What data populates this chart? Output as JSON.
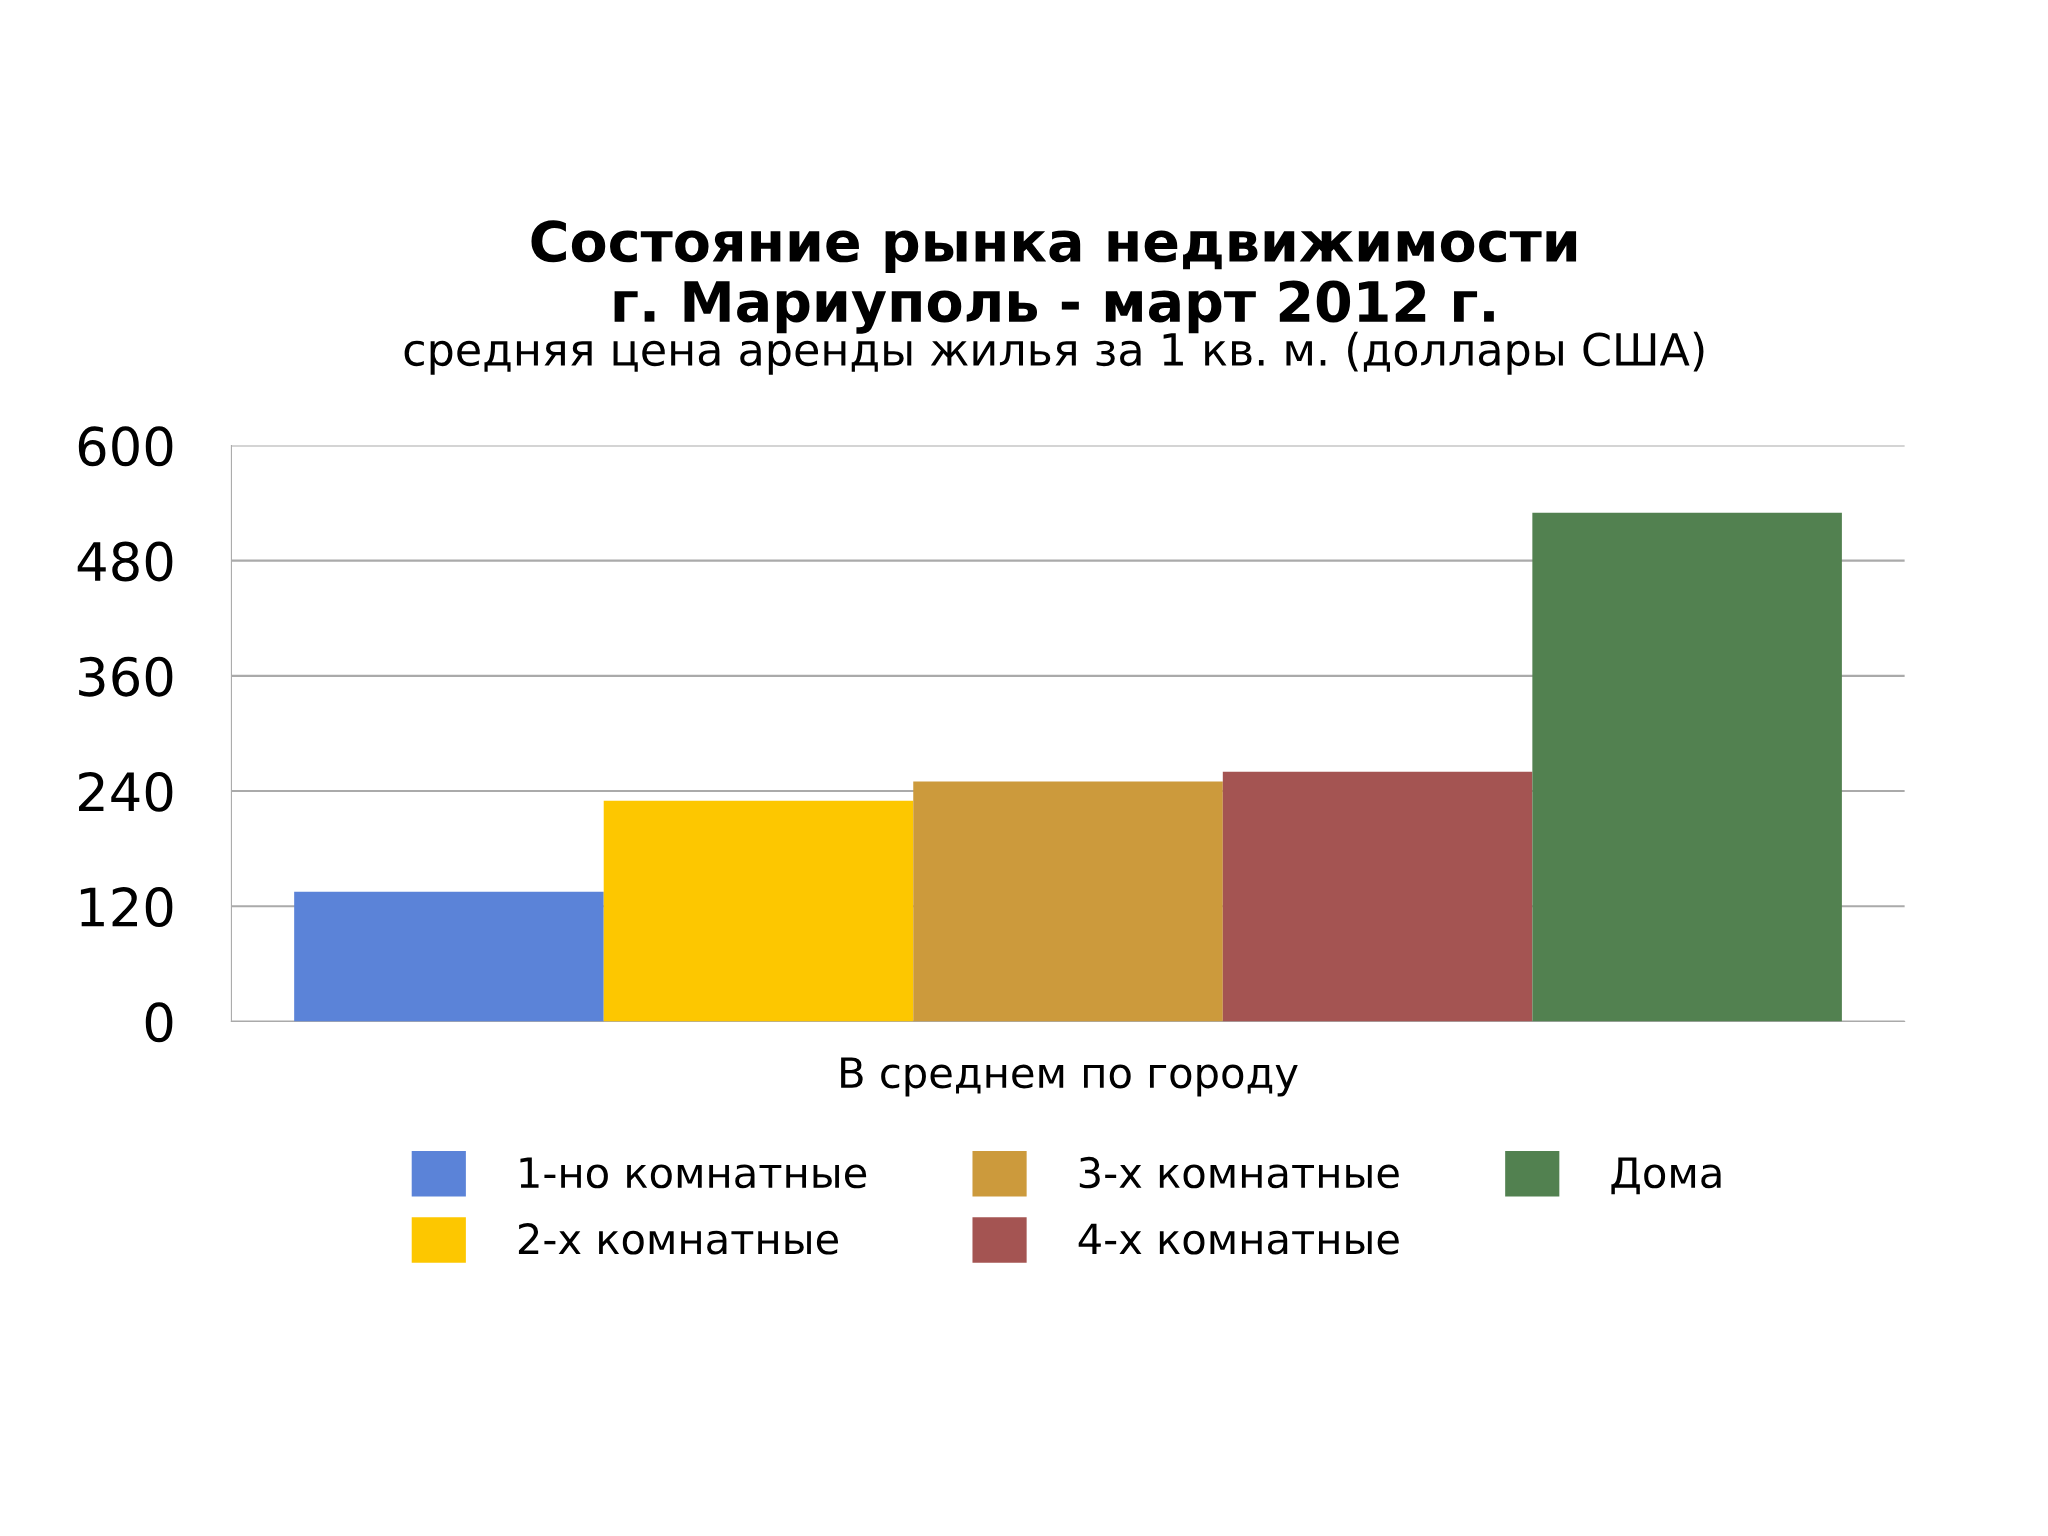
{
  "chart_data": {
    "type": "bar",
    "title": "Состояние рынка недвижимости\nг. Мариуполь - март 2012 г.",
    "subtitle": "средняя цена аренды жилья за 1 кв. м. (доллары США)",
    "categories": [
      "В среднем по городу"
    ],
    "series": [
      {
        "name": "1-но комнатные",
        "color": "#5b83d8",
        "values": [
          135
        ]
      },
      {
        "name": "2-х комнатные",
        "color": "#fdc700",
        "values": [
          230
        ]
      },
      {
        "name": "3-х комнатные",
        "color": "#cc9a3c",
        "values": [
          250
        ]
      },
      {
        "name": "4-х комнатные",
        "color": "#a45452",
        "values": [
          260
        ]
      },
      {
        "name": "Дома",
        "color": "#528150",
        "values": [
          530
        ]
      }
    ],
    "ylim": [
      0,
      600
    ],
    "yticks": [
      0,
      120,
      240,
      360,
      480,
      600
    ],
    "grid": "y",
    "legend": "bottom"
  }
}
